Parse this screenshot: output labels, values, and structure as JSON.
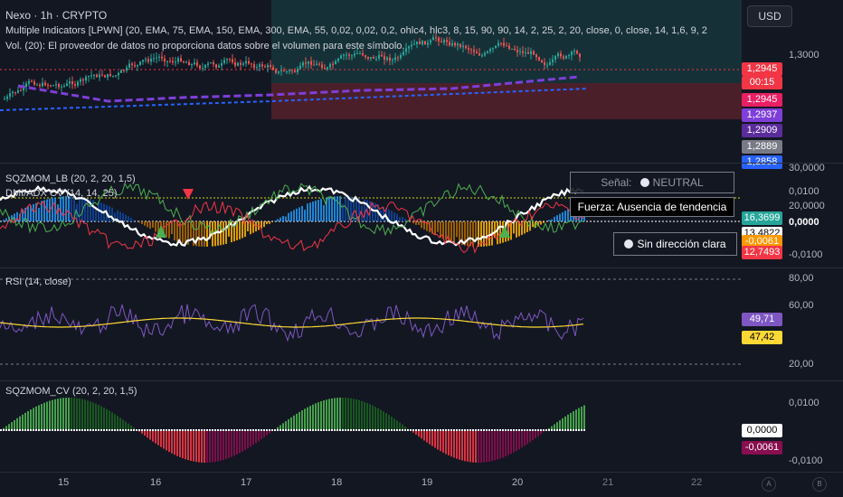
{
  "header": {
    "symbol": "Nexo · 1h · CRYPTO",
    "indicator1": "Multiple Indicators [LPWN] (20, EMA, 75, EMA, 150, EMA, 300, EMA, 55, 0,02, 0,02, 0,2, ohlc4, hlc3, 8, 15, 90, 90, 14, 2, 25, 2, 20, close, 0, close, 14, 1,6, 9, 2",
    "indicator2": "Vol. (20): El proveedor de datos no proporciona datos sobre el volumen para este símbolo.",
    "currency": "USD"
  },
  "price_axis": {
    "level": "1,3000",
    "tags": [
      {
        "text": "1,2945",
        "color": "#f23645"
      },
      {
        "text": "00:15",
        "color": "#f23645"
      },
      {
        "text": "1,2945",
        "color": "#e91e63"
      },
      {
        "text": "1,2937",
        "color": "#7e3fd9"
      },
      {
        "text": "1,2909",
        "color": "#5b2c9c"
      },
      {
        "text": "1,2889",
        "color": "#787b86"
      },
      {
        "text": "1,2858",
        "color": "#2962ff"
      }
    ]
  },
  "sqz_pane": {
    "title1": "SQZMOM_LB (20, 2, 20, 1,5)",
    "title2": "DMI/ADX CV (14, 14, 25)",
    "signal_label": "Señal:",
    "signal_value": "NEUTRAL",
    "force": "Fuerza: Ausencia de tendencia",
    "direction": "Sin dirección clara",
    "axis": [
      "30,0000",
      "0,0100",
      "20,0000",
      "0,0000",
      "-0,0100"
    ],
    "tags": [
      {
        "text": "16,3699",
        "color": "#26a69a"
      },
      {
        "text": "13,4822",
        "color": "#ffffff"
      },
      {
        "text": "-0,0061",
        "color": "#ff9800"
      },
      {
        "text": "12,7493",
        "color": "#f23645"
      }
    ]
  },
  "rsi_pane": {
    "title": "RSI (14, close)",
    "axis": [
      "80,00",
      "60,00",
      "20,00"
    ],
    "tags": [
      {
        "text": "49,71",
        "color": "#7e57c2"
      },
      {
        "text": "47,42",
        "color": "#fdd835"
      }
    ]
  },
  "sqzcv_pane": {
    "title": "SQZMOM_CV (20, 2, 20, 1,5)",
    "axis": [
      "0,0100",
      "-0,0100"
    ],
    "tags": [
      {
        "text": "0,0000",
        "color": "#ffffff"
      },
      {
        "text": "-0,0061",
        "color": "#880e4f"
      }
    ]
  },
  "time_axis": [
    "15",
    "16",
    "17",
    "18",
    "19",
    "20",
    "21",
    "22"
  ],
  "scale_buttons": [
    "A",
    "B"
  ]
}
